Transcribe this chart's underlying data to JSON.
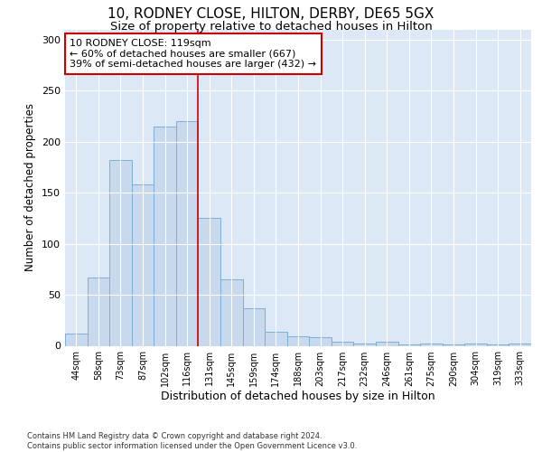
{
  "title1": "10, RODNEY CLOSE, HILTON, DERBY, DE65 5GX",
  "title2": "Size of property relative to detached houses in Hilton",
  "xlabel": "Distribution of detached houses by size in Hilton",
  "ylabel": "Number of detached properties",
  "categories": [
    "44sqm",
    "58sqm",
    "73sqm",
    "87sqm",
    "102sqm",
    "116sqm",
    "131sqm",
    "145sqm",
    "159sqm",
    "174sqm",
    "188sqm",
    "203sqm",
    "217sqm",
    "232sqm",
    "246sqm",
    "261sqm",
    "275sqm",
    "290sqm",
    "304sqm",
    "319sqm",
    "333sqm"
  ],
  "values": [
    12,
    67,
    182,
    158,
    215,
    220,
    125,
    65,
    37,
    14,
    9,
    8,
    4,
    2,
    4,
    1,
    2,
    1,
    2,
    1,
    2
  ],
  "bar_color": "#c8d9ed",
  "bar_edge_color": "#7aafd4",
  "vline_x_index": 5,
  "vline_color": "#cc0000",
  "annotation_text": "10 RODNEY CLOSE: 119sqm\n← 60% of detached houses are smaller (667)\n39% of semi-detached houses are larger (432) →",
  "annotation_box_color": "#ffffff",
  "annotation_box_edge": "#cc0000",
  "ylim": [
    0,
    310
  ],
  "yticks": [
    0,
    50,
    100,
    150,
    200,
    250,
    300
  ],
  "background_color": "#dce8f5",
  "footer_text": "Contains HM Land Registry data © Crown copyright and database right 2024.\nContains public sector information licensed under the Open Government Licence v3.0.",
  "title1_fontsize": 11,
  "title2_fontsize": 9.5,
  "xlabel_fontsize": 9,
  "ylabel_fontsize": 8.5,
  "annotation_fontsize": 8
}
